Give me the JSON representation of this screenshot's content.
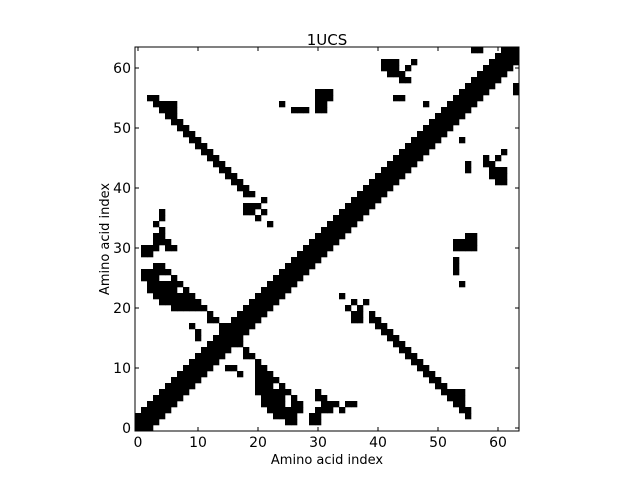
{
  "chart_data": {
    "type": "heatmap",
    "title": "1UCS",
    "xlabel": "Amino acid index",
    "ylabel": "Amino acid index",
    "n": 64,
    "xlim": [
      0,
      64
    ],
    "ylim": [
      0,
      64
    ],
    "x_ticks": [
      0,
      10,
      20,
      30,
      40,
      50,
      60
    ],
    "y_ticks": [
      0,
      10,
      20,
      30,
      40,
      50,
      60
    ],
    "diagonal_band_halfwidth": 2,
    "off_diagonal_contacts": [
      [
        5,
        54
      ],
      [
        6,
        54
      ],
      [
        3,
        54
      ],
      [
        4,
        54
      ],
      [
        4,
        53
      ],
      [
        5,
        53
      ],
      [
        6,
        53
      ],
      [
        5,
        52
      ],
      [
        6,
        52
      ],
      [
        6,
        51
      ],
      [
        7,
        51
      ],
      [
        8,
        50
      ],
      [
        7,
        50
      ],
      [
        8,
        49
      ],
      [
        9,
        49
      ],
      [
        9,
        48
      ],
      [
        10,
        48
      ],
      [
        10,
        47
      ],
      [
        11,
        47
      ],
      [
        11,
        46
      ],
      [
        12,
        46
      ],
      [
        12,
        45
      ],
      [
        13,
        45
      ],
      [
        13,
        44
      ],
      [
        14,
        44
      ],
      [
        14,
        43
      ],
      [
        15,
        43
      ],
      [
        15,
        42
      ],
      [
        16,
        42
      ],
      [
        16,
        41
      ],
      [
        17,
        41
      ],
      [
        18,
        40
      ],
      [
        17,
        40
      ],
      [
        18,
        39
      ],
      [
        19,
        39
      ],
      [
        18,
        36
      ],
      [
        21,
        36
      ],
      [
        26,
        4
      ],
      [
        27,
        4
      ],
      [
        26,
        3
      ],
      [
        27,
        3
      ],
      [
        26,
        5
      ],
      [
        25,
        6
      ],
      [
        24,
        6
      ],
      [
        24,
        7
      ],
      [
        23,
        8
      ],
      [
        22,
        8
      ],
      [
        22,
        9
      ],
      [
        21,
        9
      ],
      [
        21,
        10
      ],
      [
        20,
        10
      ],
      [
        20,
        11
      ],
      [
        19,
        12
      ],
      [
        18,
        12
      ],
      [
        18,
        13
      ],
      [
        17,
        14
      ],
      [
        17,
        15
      ],
      [
        16,
        16
      ],
      [
        16,
        17
      ],
      [
        6,
        20
      ],
      [
        7,
        20
      ],
      [
        4,
        21
      ],
      [
        5,
        21
      ],
      [
        6,
        21
      ],
      [
        4,
        22
      ],
      [
        5,
        22
      ],
      [
        3,
        23
      ],
      [
        4,
        23
      ],
      [
        2,
        24
      ],
      [
        3,
        24
      ],
      [
        1,
        25
      ],
      [
        2,
        25
      ],
      [
        4,
        33
      ],
      [
        4,
        32
      ],
      [
        3,
        32
      ],
      [
        5,
        31
      ],
      [
        6,
        30
      ],
      [
        5,
        30
      ],
      [
        3,
        30
      ],
      [
        4,
        36
      ],
      [
        31,
        56
      ],
      [
        32,
        56
      ],
      [
        31,
        55
      ],
      [
        32,
        55
      ],
      [
        31,
        54
      ],
      [
        30,
        53
      ],
      [
        31,
        53
      ],
      [
        28,
        53
      ],
      [
        42,
        61
      ],
      [
        43,
        61
      ],
      [
        43,
        60
      ],
      [
        42,
        60
      ],
      [
        44,
        59
      ],
      [
        45,
        60
      ],
      [
        46,
        61
      ],
      [
        48,
        54
      ],
      [
        58,
        44
      ],
      [
        59,
        43
      ],
      [
        60,
        43
      ],
      [
        59,
        42
      ],
      [
        60,
        41
      ],
      [
        61,
        41
      ],
      [
        58,
        45
      ],
      [
        53,
        30
      ],
      [
        54,
        30
      ],
      [
        55,
        30
      ],
      [
        56,
        30
      ],
      [
        53,
        31
      ],
      [
        54,
        31
      ],
      [
        55,
        31
      ],
      [
        56,
        31
      ],
      [
        53,
        26
      ],
      [
        40,
        17
      ],
      [
        41,
        17
      ],
      [
        41,
        16
      ],
      [
        42,
        16
      ],
      [
        42,
        15
      ],
      [
        43,
        15
      ],
      [
        43,
        14
      ],
      [
        44,
        14
      ],
      [
        44,
        13
      ],
      [
        45,
        13
      ],
      [
        45,
        12
      ],
      [
        46,
        12
      ],
      [
        46,
        11
      ],
      [
        47,
        11
      ],
      [
        47,
        10
      ],
      [
        48,
        10
      ],
      [
        48,
        9
      ],
      [
        49,
        9
      ],
      [
        49,
        8
      ],
      [
        50,
        8
      ],
      [
        50,
        7
      ],
      [
        51,
        7
      ],
      [
        51,
        6
      ],
      [
        52,
        6
      ],
      [
        52,
        5
      ],
      [
        53,
        5
      ],
      [
        53,
        4
      ],
      [
        54,
        4
      ],
      [
        54,
        3
      ],
      [
        55,
        3
      ],
      [
        55,
        2
      ],
      [
        36,
        19
      ],
      [
        35,
        20
      ],
      [
        34,
        22
      ],
      [
        37,
        18
      ],
      [
        20,
        8
      ],
      [
        20,
        9
      ],
      [
        21,
        7
      ],
      [
        21,
        8
      ],
      [
        22,
        7
      ],
      [
        22,
        6
      ],
      [
        23,
        6
      ],
      [
        23,
        5
      ],
      [
        24,
        5
      ],
      [
        24,
        4
      ],
      [
        25,
        3
      ],
      [
        25,
        2
      ],
      [
        26,
        1
      ],
      [
        26,
        2
      ],
      [
        31,
        4
      ],
      [
        32,
        4
      ],
      [
        33,
        4
      ],
      [
        30,
        3
      ],
      [
        31,
        3
      ],
      [
        29,
        2
      ],
      [
        30,
        2
      ],
      [
        29,
        1
      ],
      [
        30,
        1
      ],
      [
        34,
        3
      ],
      [
        35,
        4
      ],
      [
        13,
        11
      ],
      [
        15,
        10
      ],
      [
        16,
        10
      ],
      [
        17,
        9
      ],
      [
        21,
        4
      ],
      [
        22,
        3
      ],
      [
        23,
        2
      ],
      [
        43,
        55
      ],
      [
        44,
        55
      ],
      [
        60,
        61
      ],
      [
        61,
        61
      ],
      [
        63,
        57
      ],
      [
        63,
        56
      ],
      [
        58,
        64
      ],
      [
        59,
        64
      ],
      [
        62,
        62
      ],
      [
        27,
        53
      ],
      [
        24,
        54
      ],
      [
        19,
        37
      ],
      [
        20,
        37
      ],
      [
        21,
        38
      ]
    ]
  }
}
